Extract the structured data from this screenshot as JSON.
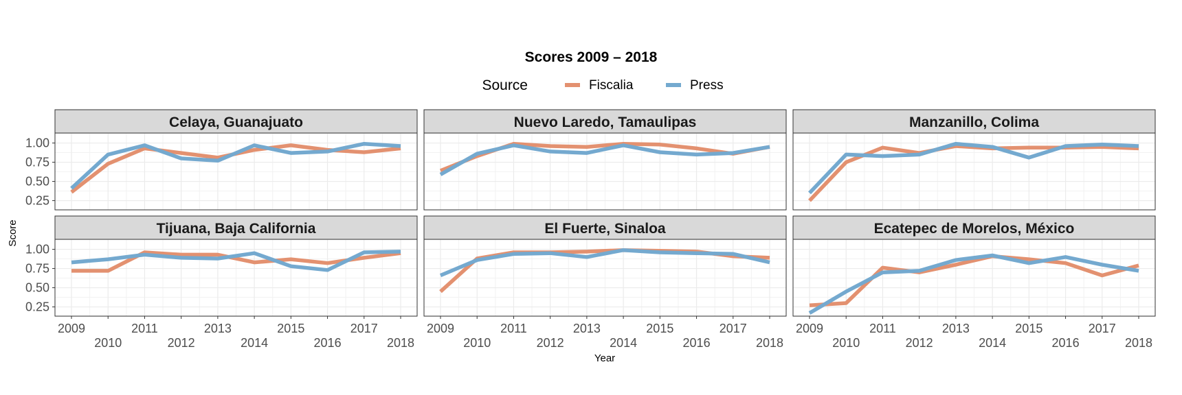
{
  "chart_data": {
    "type": "line",
    "title": "Scores 2009 – 2018",
    "xlabel": "Year",
    "ylabel": "Score",
    "legend": {
      "title": "Source",
      "position": "top"
    },
    "x": [
      2009,
      2010,
      2011,
      2012,
      2013,
      2014,
      2015,
      2016,
      2017,
      2018
    ],
    "x_tick_labels": [
      "2009",
      "2010",
      "2011",
      "2012",
      "2013",
      "2014",
      "2015",
      "2016",
      "2017",
      "2018"
    ],
    "ylim": [
      0.13,
      1.13
    ],
    "y_ticks": [
      0.25,
      0.5,
      0.75,
      1.0
    ],
    "y_tick_labels": [
      "0.25",
      "0.50",
      "0.75",
      "1.00"
    ],
    "grid": true,
    "series_styles": [
      {
        "name": "Fiscalia",
        "color": "#E39170"
      },
      {
        "name": "Press",
        "color": "#74A9CF"
      }
    ],
    "facets": [
      {
        "title": "Celaya, Guanajuato",
        "series": [
          {
            "name": "Fiscalia",
            "values": [
              0.36,
              0.73,
              0.93,
              0.87,
              0.81,
              0.91,
              0.97,
              0.91,
              0.88,
              0.93
            ]
          },
          {
            "name": "Press",
            "values": [
              0.41,
              0.85,
              0.97,
              0.8,
              0.77,
              0.97,
              0.87,
              0.89,
              0.99,
              0.96
            ]
          }
        ]
      },
      {
        "title": "Nuevo Laredo, Tamaulipas",
        "series": [
          {
            "name": "Fiscalia",
            "values": [
              0.64,
              0.83,
              0.99,
              0.96,
              0.95,
              0.99,
              0.98,
              0.93,
              0.86,
              0.95
            ]
          },
          {
            "name": "Press",
            "values": [
              0.59,
              0.86,
              0.97,
              0.89,
              0.87,
              0.97,
              0.88,
              0.85,
              0.87,
              0.95
            ]
          }
        ]
      },
      {
        "title": "Manzanillo, Colima",
        "series": [
          {
            "name": "Fiscalia",
            "values": [
              0.25,
              0.75,
              0.94,
              0.87,
              0.96,
              0.93,
              0.94,
              0.94,
              0.95,
              0.93
            ]
          },
          {
            "name": "Press",
            "values": [
              0.35,
              0.85,
              0.83,
              0.85,
              0.99,
              0.95,
              0.81,
              0.96,
              0.98,
              0.96
            ]
          }
        ]
      },
      {
        "title": "Tijuana, Baja California",
        "series": [
          {
            "name": "Fiscalia",
            "values": [
              0.72,
              0.72,
              0.96,
              0.93,
              0.93,
              0.83,
              0.87,
              0.82,
              0.89,
              0.95
            ]
          },
          {
            "name": "Press",
            "values": [
              0.83,
              0.87,
              0.93,
              0.89,
              0.88,
              0.95,
              0.78,
              0.73,
              0.96,
              0.97
            ]
          }
        ]
      },
      {
        "title": "El Fuerte, Sinaloa",
        "series": [
          {
            "name": "Fiscalia",
            "values": [
              0.45,
              0.88,
              0.96,
              0.96,
              0.97,
              0.99,
              0.98,
              0.97,
              0.91,
              0.89
            ]
          },
          {
            "name": "Press",
            "values": [
              0.66,
              0.86,
              0.94,
              0.95,
              0.9,
              0.99,
              0.96,
              0.95,
              0.94,
              0.83
            ]
          }
        ]
      },
      {
        "title": "Ecatepec de Morelos, México",
        "series": [
          {
            "name": "Fiscalia",
            "values": [
              0.27,
              0.3,
              0.76,
              0.7,
              0.8,
              0.91,
              0.87,
              0.82,
              0.66,
              0.79
            ]
          },
          {
            "name": "Press",
            "values": [
              0.17,
              0.45,
              0.7,
              0.72,
              0.86,
              0.92,
              0.82,
              0.9,
              0.8,
              0.72
            ]
          }
        ]
      }
    ]
  }
}
